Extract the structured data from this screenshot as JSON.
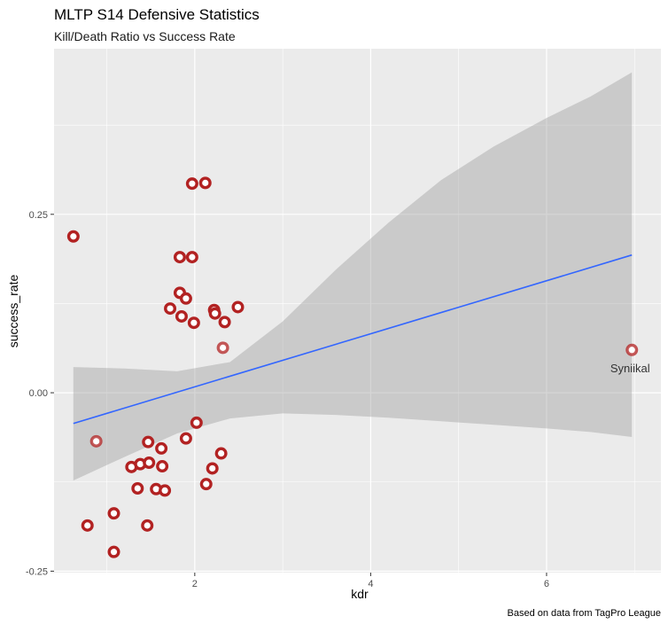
{
  "chart_data": {
    "type": "scatter",
    "title": "MLTP S14 Defensive Statistics",
    "subtitle": "Kill/Death Ratio vs Success Rate",
    "xlabel": "kdr",
    "ylabel": "success_rate",
    "caption": "Based on data from TagPro League",
    "xlim": [
      0.4,
      7.3
    ],
    "ylim": [
      -0.252,
      0.482
    ],
    "x_ticks": [
      2,
      4,
      6
    ],
    "x_tick_labels": [
      "2",
      "4",
      "6"
    ],
    "y_ticks": [
      -0.25,
      0.0,
      0.25
    ],
    "y_tick_labels": [
      "-0.25",
      "0.00",
      "0.25"
    ],
    "grid": true,
    "colors": {
      "panel": "#ebebeb",
      "grid": "#ffffff",
      "point": "#b22222",
      "trend": "#3366ff",
      "ribbon": "#999999"
    },
    "points": [
      {
        "x": 0.62,
        "y": 0.219
      },
      {
        "x": 0.78,
        "y": -0.186
      },
      {
        "x": 0.88,
        "y": -0.068,
        "faded": true
      },
      {
        "x": 1.08,
        "y": -0.169
      },
      {
        "x": 1.08,
        "y": -0.223
      },
      {
        "x": 1.28,
        "y": -0.104
      },
      {
        "x": 1.35,
        "y": -0.134
      },
      {
        "x": 1.38,
        "y": -0.1
      },
      {
        "x": 1.46,
        "y": -0.186
      },
      {
        "x": 1.47,
        "y": -0.069
      },
      {
        "x": 1.48,
        "y": -0.098
      },
      {
        "x": 1.56,
        "y": -0.135
      },
      {
        "x": 1.62,
        "y": -0.078
      },
      {
        "x": 1.63,
        "y": -0.103
      },
      {
        "x": 1.66,
        "y": -0.137
      },
      {
        "x": 1.72,
        "y": 0.118
      },
      {
        "x": 1.83,
        "y": 0.19
      },
      {
        "x": 1.83,
        "y": 0.14
      },
      {
        "x": 1.85,
        "y": 0.107
      },
      {
        "x": 1.9,
        "y": 0.132
      },
      {
        "x": 1.9,
        "y": -0.064
      },
      {
        "x": 1.97,
        "y": 0.293
      },
      {
        "x": 1.97,
        "y": 0.19
      },
      {
        "x": 1.99,
        "y": 0.098
      },
      {
        "x": 2.02,
        "y": -0.042
      },
      {
        "x": 2.12,
        "y": 0.294
      },
      {
        "x": 2.13,
        "y": -0.128
      },
      {
        "x": 2.2,
        "y": -0.106
      },
      {
        "x": 2.22,
        "y": 0.116
      },
      {
        "x": 2.23,
        "y": 0.111
      },
      {
        "x": 2.3,
        "y": -0.085
      },
      {
        "x": 2.32,
        "y": 0.063,
        "faded": true
      },
      {
        "x": 2.34,
        "y": 0.099
      },
      {
        "x": 2.49,
        "y": 0.12
      },
      {
        "x": 6.97,
        "y": 0.06,
        "faded": true,
        "label": "Syniikal"
      }
    ],
    "trend_line": {
      "x": [
        0.62,
        6.97
      ],
      "y": [
        -0.043,
        0.193
      ]
    },
    "confidence_band": {
      "x": [
        0.62,
        1.2,
        1.8,
        2.4,
        3.0,
        3.6,
        4.2,
        4.8,
        5.4,
        6.0,
        6.5,
        6.97
      ],
      "upper": [
        0.036,
        0.034,
        0.03,
        0.043,
        0.1,
        0.172,
        0.238,
        0.298,
        0.345,
        0.385,
        0.415,
        0.449
      ],
      "lower": [
        -0.123,
        -0.09,
        -0.057,
        -0.036,
        -0.029,
        -0.031,
        -0.035,
        -0.04,
        -0.045,
        -0.05,
        -0.055,
        -0.062
      ]
    }
  }
}
